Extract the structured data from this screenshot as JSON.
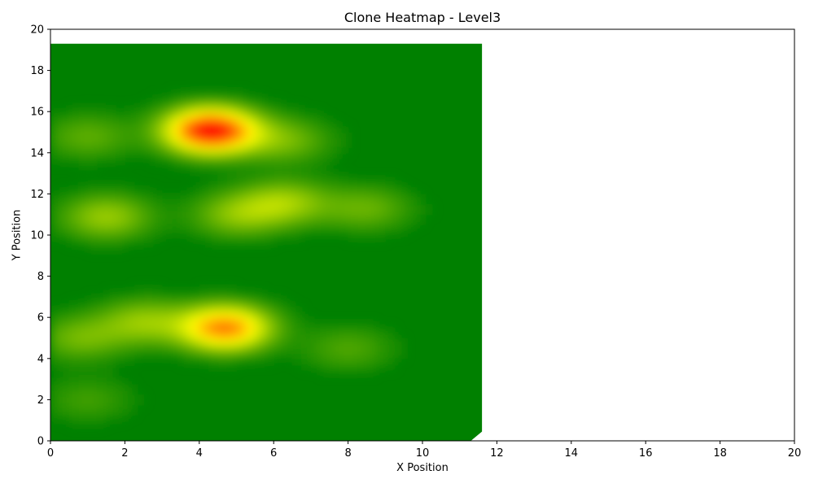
{
  "chart_data": {
    "type": "heatmap",
    "title": "Clone Heatmap - Level3",
    "xlabel": "X Position",
    "ylabel": "Y Position",
    "xlim": [
      0,
      20
    ],
    "ylim": [
      0,
      20
    ],
    "xticks": [
      "0",
      "2",
      "4",
      "6",
      "8",
      "10",
      "12",
      "14",
      "16",
      "18",
      "20"
    ],
    "yticks": [
      "0",
      "2",
      "4",
      "6",
      "8",
      "10",
      "12",
      "14",
      "16",
      "18",
      "20"
    ],
    "grid": false,
    "colormap": [
      "#008000",
      "#ffff00",
      "#ff0000"
    ],
    "data_extent": {
      "x": [
        0,
        11.6
      ],
      "y": [
        0,
        19.3
      ]
    },
    "hotspots": [
      {
        "x": 4.3,
        "y": 15.1,
        "intensity": 1.0
      },
      {
        "x": 4.7,
        "y": 5.5,
        "intensity": 0.75
      },
      {
        "x": 1.5,
        "y": 10.9,
        "intensity": 0.3
      },
      {
        "x": 6.3,
        "y": 11.6,
        "intensity": 0.3
      },
      {
        "x": 5.0,
        "y": 11.0,
        "intensity": 0.25
      },
      {
        "x": 2.5,
        "y": 5.8,
        "intensity": 0.28
      },
      {
        "x": 0.8,
        "y": 5.0,
        "intensity": 0.22
      },
      {
        "x": 6.3,
        "y": 14.6,
        "intensity": 0.22
      },
      {
        "x": 1.0,
        "y": 14.8,
        "intensity": 0.18
      },
      {
        "x": 8.5,
        "y": 11.3,
        "intensity": 0.2
      },
      {
        "x": 8.0,
        "y": 4.5,
        "intensity": 0.15
      },
      {
        "x": 1.0,
        "y": 2.0,
        "intensity": 0.12
      }
    ]
  }
}
